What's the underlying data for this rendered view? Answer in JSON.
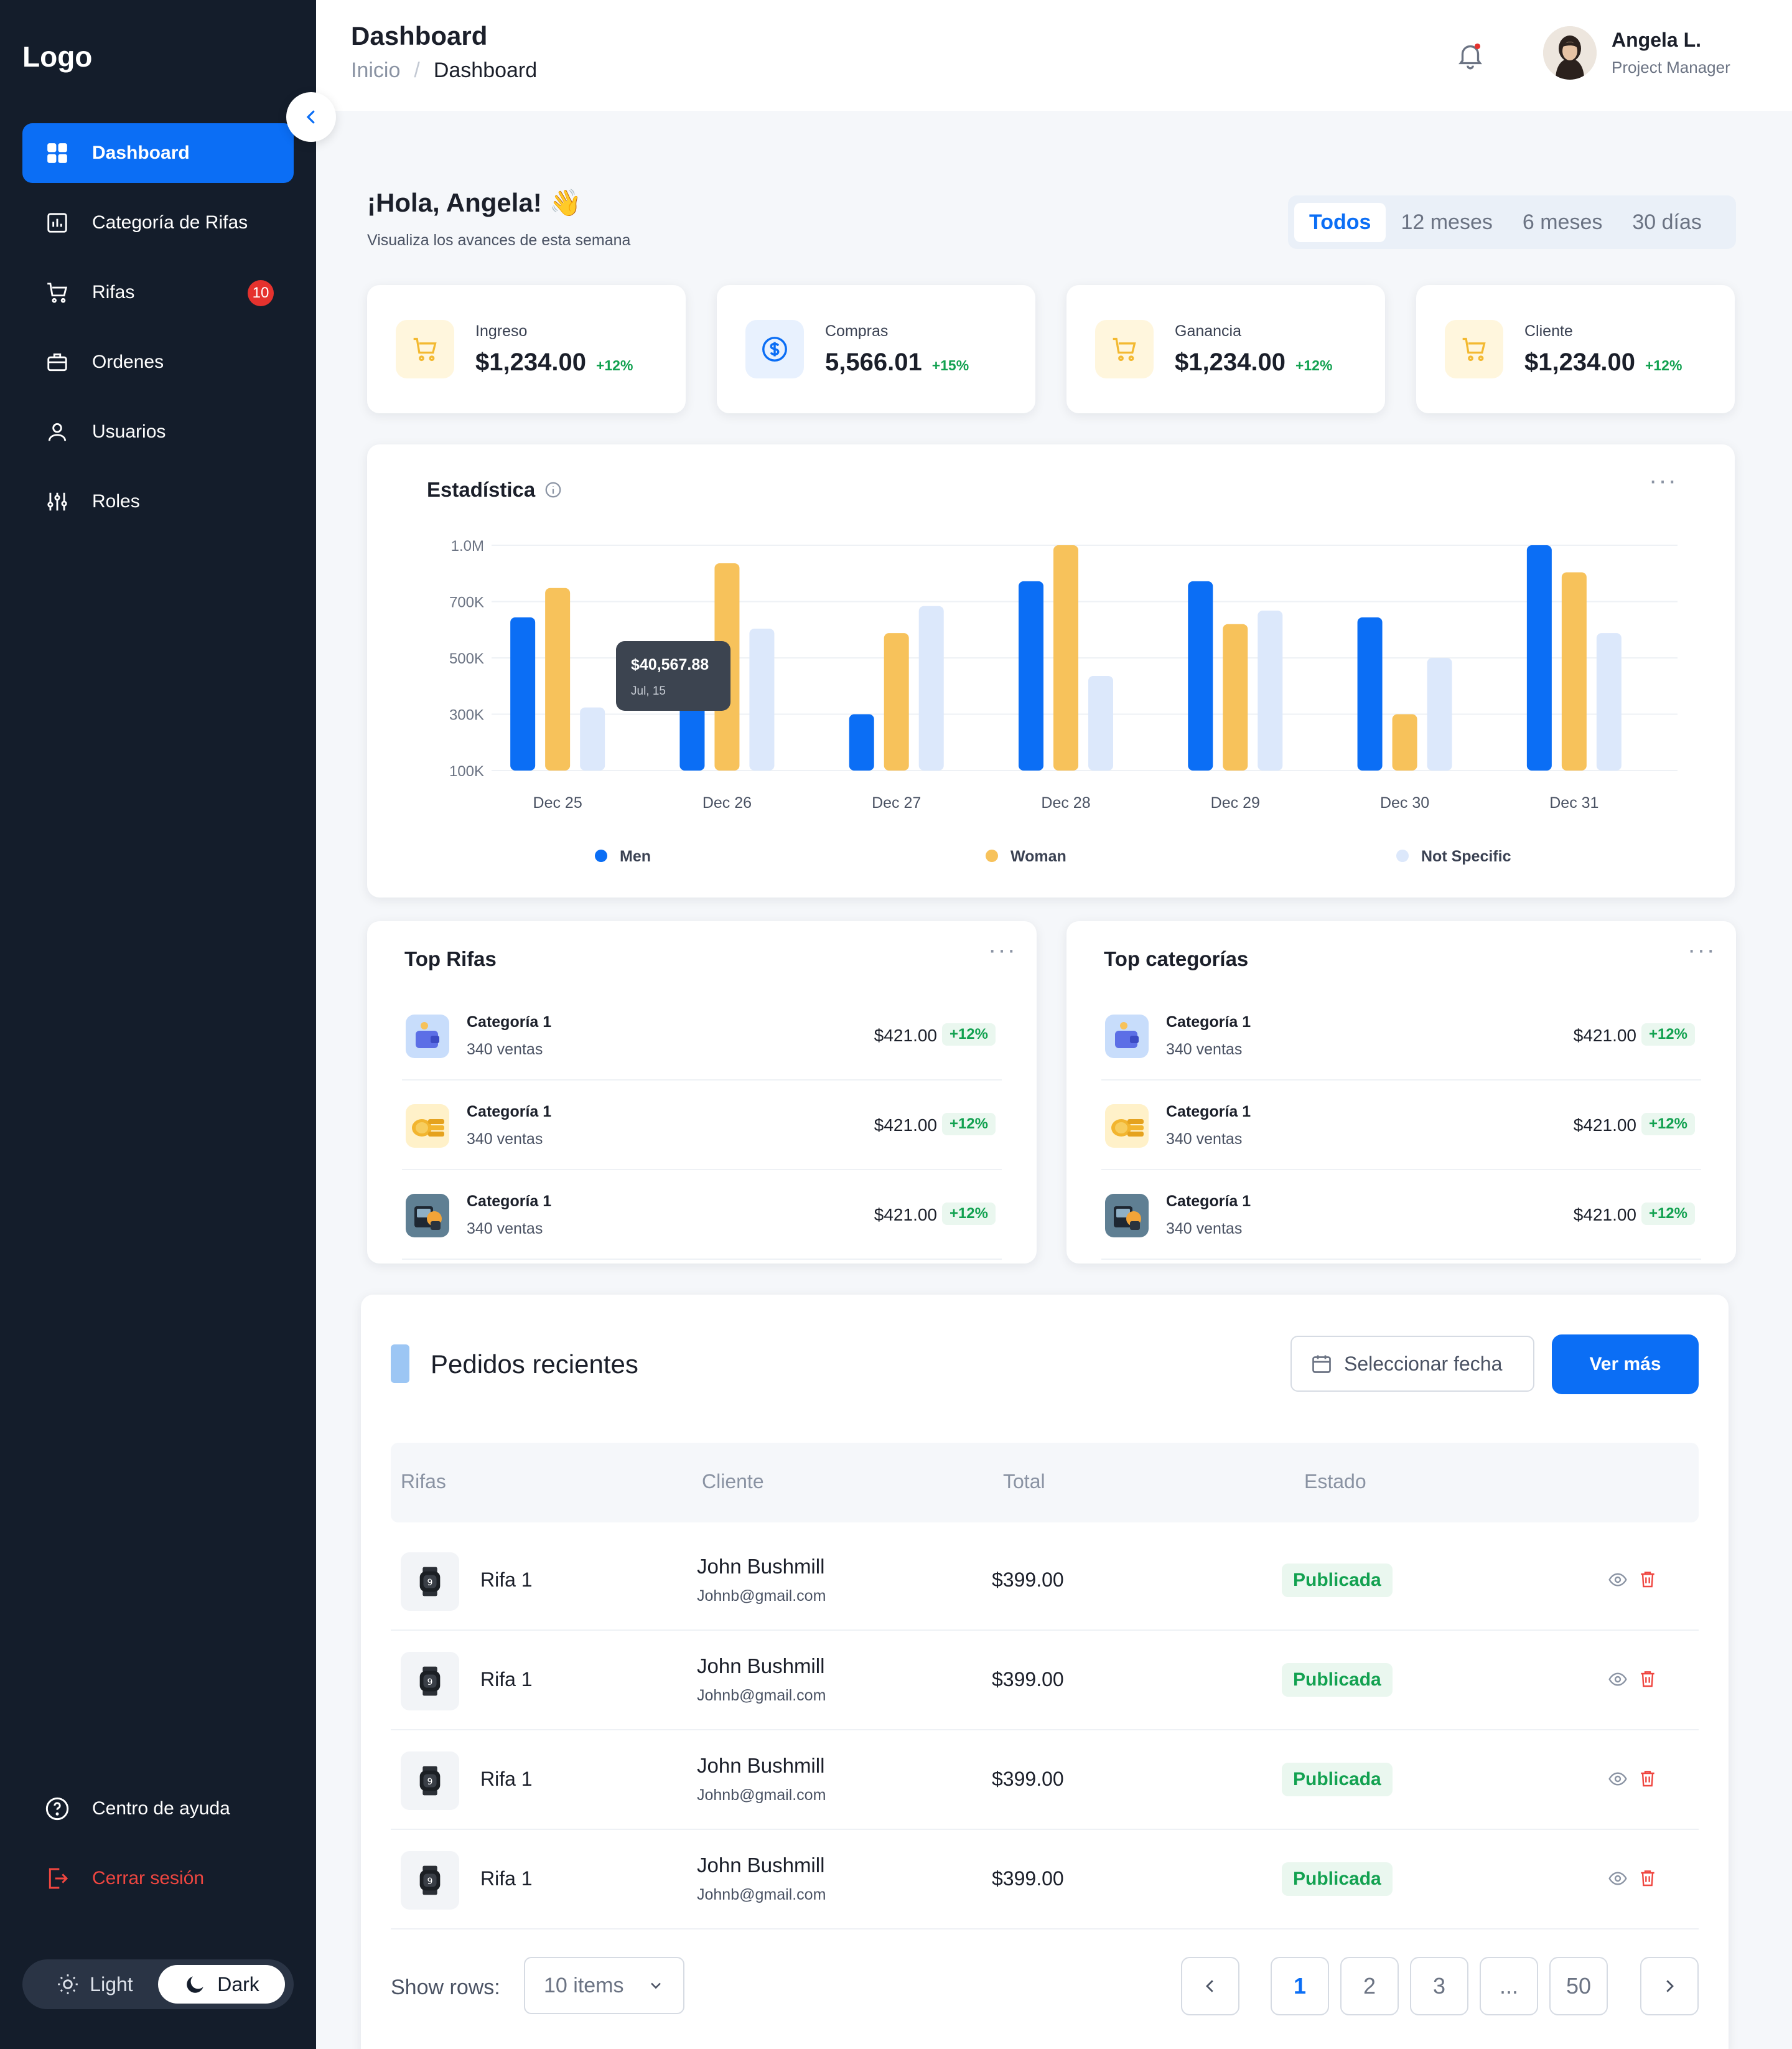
{
  "sidebar": {
    "logo": "Logo",
    "items": [
      {
        "label": "Dashboard",
        "icon": "grid-icon"
      },
      {
        "label": "Categoría de Rifas",
        "icon": "bar-chart-icon"
      },
      {
        "label": "Rifas",
        "icon": "cart-icon",
        "badge": "10"
      },
      {
        "label": "Ordenes",
        "icon": "briefcase-icon"
      },
      {
        "label": "Usuarios",
        "icon": "user-icon"
      },
      {
        "label": "Roles",
        "icon": "sliders-icon"
      }
    ],
    "help": "Centro de ayuda",
    "logout": "Cerrar sesión",
    "theme": {
      "light": "Light",
      "dark": "Dark"
    }
  },
  "header": {
    "title": "Dashboard",
    "breadcrumb": [
      "Inicio",
      "/",
      "Dashboard"
    ],
    "user_name": "Angela L.",
    "user_role": "Project Manager"
  },
  "greeting": {
    "title": "¡Hola, Angela! 👋",
    "subtitle": "Visualiza los avances de esta semana"
  },
  "periods": [
    "Todos",
    "12 meses",
    "6 meses",
    "30 días"
  ],
  "stats": [
    {
      "label": "Ingreso",
      "value": "$1,234.00",
      "delta": "+12%"
    },
    {
      "label": "Compras",
      "value": "5,566.01",
      "delta": "+15%"
    },
    {
      "label": "Ganancia",
      "value": "$1,234.00",
      "delta": "+12%"
    },
    {
      "label": "Cliente",
      "value": "$1,234.00",
      "delta": "+12%"
    }
  ],
  "statistics": {
    "title": "Estadística",
    "tooltip_value": "$40,567.88",
    "tooltip_date": "Jul, 15"
  },
  "chart_data": {
    "type": "bar",
    "categories": [
      "Dec 25",
      "Dec 26",
      "Dec 27",
      "Dec 28",
      "Dec 29",
      "Dec 30",
      "Dec 31"
    ],
    "yticks": [
      "1.0M",
      "700K",
      "500K",
      "300K",
      "100K"
    ],
    "series": [
      {
        "name": "Men",
        "color": "#0B6EF5",
        "values": [
          0.68,
          0.57,
          0.25,
          0.84,
          0.84,
          0.68,
          1.0
        ]
      },
      {
        "name": "Woman",
        "color": "#F7C25B",
        "values": [
          0.81,
          0.92,
          0.61,
          1.0,
          0.65,
          0.25,
          0.88
        ]
      },
      {
        "name": "Not Specific",
        "color": "#DCE8FB",
        "values": [
          0.28,
          0.63,
          0.73,
          0.42,
          0.71,
          0.5,
          0.61
        ]
      }
    ],
    "ylim": [
      0,
      1
    ],
    "grid": true,
    "legend": "bottom"
  },
  "top_rifas": {
    "title": "Top Rifas",
    "items": [
      {
        "name": "Categoría 1",
        "sub": "340 ventas",
        "amount": "$421.00",
        "delta": "+12%"
      },
      {
        "name": "Categoría 1",
        "sub": "340 ventas",
        "amount": "$421.00",
        "delta": "+12%"
      },
      {
        "name": "Categoría 1",
        "sub": "340 ventas",
        "amount": "$421.00",
        "delta": "+12%"
      }
    ]
  },
  "top_categorias": {
    "title": "Top categorías",
    "items": [
      {
        "name": "Categoría 1",
        "sub": "340 ventas",
        "amount": "$421.00",
        "delta": "+12%"
      },
      {
        "name": "Categoría 1",
        "sub": "340 ventas",
        "amount": "$421.00",
        "delta": "+12%"
      },
      {
        "name": "Categoría 1",
        "sub": "340 ventas",
        "amount": "$421.00",
        "delta": "+12%"
      }
    ]
  },
  "orders": {
    "title": "Pedidos recientes",
    "date_placeholder": "Seleccionar fecha",
    "more": "Ver más",
    "columns": [
      "Rifas",
      "Cliente",
      "Total",
      "Estado"
    ],
    "rows": [
      {
        "rifa": "Rifa 1",
        "client": "John Bushmill",
        "email": "Johnb@gmail.com",
        "total": "$399.00",
        "status": "Publicada"
      },
      {
        "rifa": "Rifa 1",
        "client": "John Bushmill",
        "email": "Johnb@gmail.com",
        "total": "$399.00",
        "status": "Publicada"
      },
      {
        "rifa": "Rifa 1",
        "client": "John Bushmill",
        "email": "Johnb@gmail.com",
        "total": "$399.00",
        "status": "Publicada"
      },
      {
        "rifa": "Rifa 1",
        "client": "John Bushmill",
        "email": "Johnb@gmail.com",
        "total": "$399.00",
        "status": "Publicada"
      }
    ],
    "show_rows": "Show rows:",
    "rows_value": "10 items",
    "pages": [
      "1",
      "2",
      "3",
      "...",
      "50"
    ]
  }
}
